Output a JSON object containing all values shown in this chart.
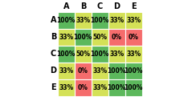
{
  "labels": [
    "A",
    "B",
    "C",
    "D",
    "E"
  ],
  "values": [
    [
      100,
      33,
      100,
      33,
      33
    ],
    [
      33,
      100,
      50,
      0,
      0
    ],
    [
      100,
      50,
      100,
      33,
      33
    ],
    [
      33,
      0,
      33,
      100,
      100
    ],
    [
      33,
      0,
      33,
      100,
      100
    ]
  ],
  "colors": [
    [
      "#5cb85c",
      "#d4e157",
      "#5cb85c",
      "#d4e157",
      "#d4e157"
    ],
    [
      "#d4e157",
      "#5cb85c",
      "#d4e157",
      "#f56c6c",
      "#f56c6c"
    ],
    [
      "#5cb85c",
      "#d4e157",
      "#5cb85c",
      "#d4e157",
      "#d4e157"
    ],
    [
      "#d4e157",
      "#f56c6c",
      "#d4e157",
      "#5cb85c",
      "#5cb85c"
    ],
    [
      "#d4e157",
      "#f56c6c",
      "#d4e157",
      "#5cb85c",
      "#5cb85c"
    ]
  ],
  "text_color": "#000000",
  "header_color": "#000000",
  "cell_font_size": 5.5,
  "header_font_size": 7.0,
  "bg_color": "#ffffff",
  "edge_color": "#ffffff",
  "edge_lw": 0.8
}
